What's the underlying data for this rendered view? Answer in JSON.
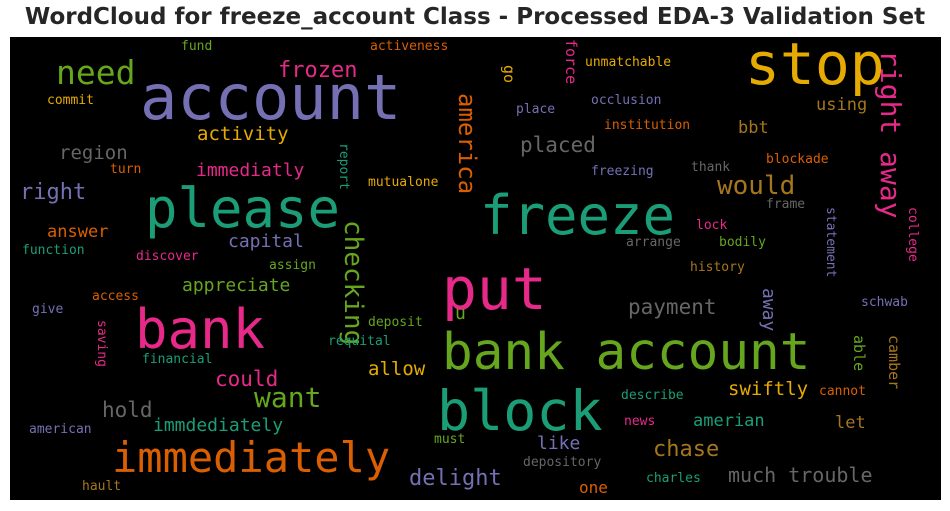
{
  "title": "WordCloud for freeze_account Class - Processed EDA-3 Validation Set",
  "palette": {
    "background": "#000000",
    "purple": "#7570b3",
    "green": "#1b9e77",
    "orange": "#d95f02",
    "pink": "#e7298a",
    "lime": "#66a61e",
    "yellow": "#e6ab02",
    "brown": "#a6761d",
    "gray": "#666666"
  },
  "words": {
    "account": "account",
    "stop": "stop",
    "need": "need",
    "frozen": "frozen",
    "activeness": "activeness",
    "fund": "fund",
    "force": "force",
    "unmatchable": "unmatchable",
    "right_away": "right away",
    "go": "go",
    "america": "america",
    "commit": "commit",
    "place": "place",
    "occlusion": "occlusion",
    "using": "using",
    "institution": "institution",
    "activity": "activity",
    "bbt": "bbt",
    "region": "region",
    "placed": "placed",
    "turn": "turn",
    "immediatly": "immediatly",
    "report": "report",
    "thank": "thank",
    "blockade": "blockade",
    "freezing": "freezing",
    "right": "right",
    "would": "would",
    "mutualone": "mutualone",
    "please": "please",
    "freeze": "freeze",
    "frame": "frame",
    "checking": "checking",
    "answer": "answer",
    "lock": "lock",
    "college": "college",
    "capital": "capital",
    "arrange": "arrange",
    "bodily": "bodily",
    "statement": "statement",
    "function": "function",
    "discover": "discover",
    "assign": "assign",
    "history": "history",
    "put": "put",
    "appreciate": "appreciate",
    "access": "access",
    "give": "give",
    "payment": "payment",
    "away": "away",
    "schwab": "schwab",
    "bank": "bank",
    "u": "u",
    "deposit": "deposit",
    "saving": "saving",
    "requital": "requital",
    "bank_account": "bank account",
    "able": "able",
    "camber": "camber",
    "financial": "financial",
    "could": "could",
    "allow": "allow",
    "swiftly": "swiftly",
    "cannot": "cannot",
    "want": "want",
    "hold": "hold",
    "block": "block",
    "describe": "describe",
    "immdediately": "immdediately",
    "amerian": "amerian",
    "let": "let",
    "news": "news",
    "american": "american",
    "must": "must",
    "like": "like",
    "chase": "chase",
    "immediately": "immediately",
    "depository": "depository",
    "much_trouble": "much trouble",
    "delight": "delight",
    "hault": "hault",
    "one": "one",
    "charles": "charles"
  }
}
